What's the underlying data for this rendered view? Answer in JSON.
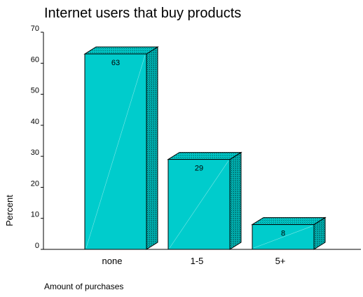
{
  "chart_data": {
    "type": "bar",
    "title": "Internet users that buy products",
    "xlabel": "Amount of purchases",
    "ylabel": "Percent",
    "categories": [
      "none",
      "1-5",
      "5+"
    ],
    "values": [
      63,
      29,
      8
    ],
    "data_labels": [
      "63",
      "29",
      "8"
    ],
    "ylim": [
      0,
      70
    ],
    "yticks": [
      0,
      10,
      20,
      30,
      40,
      50,
      60,
      70
    ],
    "grid": false,
    "legend": "none",
    "bar_color": "#00CCCC",
    "side_color": "#00A0A0",
    "top_color": "#00C4C4"
  }
}
